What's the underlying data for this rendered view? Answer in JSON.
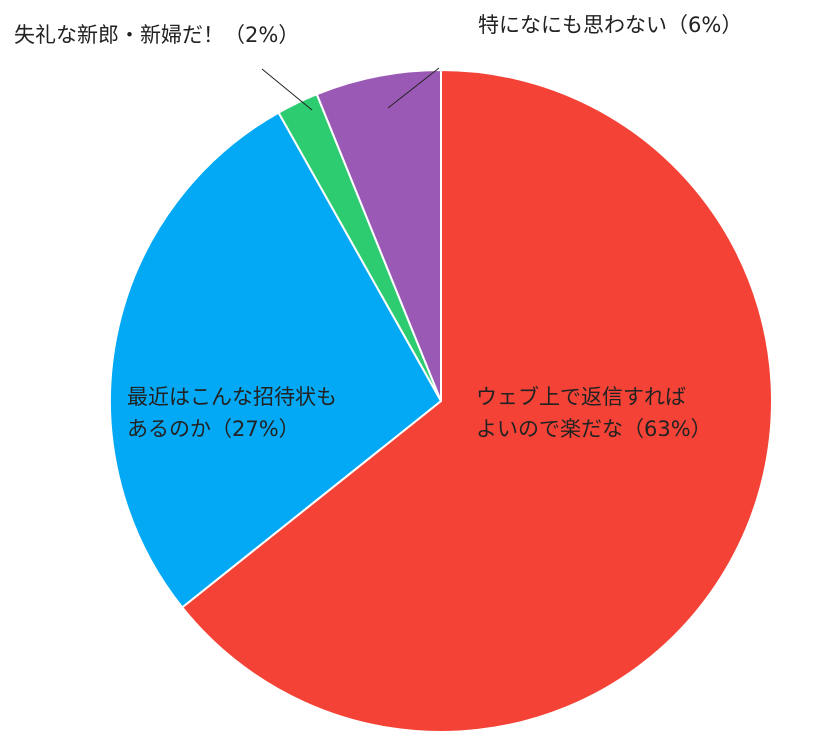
{
  "chart_data": {
    "type": "pie",
    "title": "",
    "start_angle_deg": 0,
    "direction": "clockwise",
    "label_color": "#222222",
    "slices": [
      {
        "label": "ウェブ上で返信すれば\nよいので楽だな（63%）",
        "value": 63,
        "color": "#f44336"
      },
      {
        "label": "最近はこんな招待状も\nあるのか（27%）",
        "value": 27,
        "color": "#03a9f4"
      },
      {
        "label": "失礼な新郎・新婦だ！（2%）",
        "value": 2,
        "color": "#2ecc71"
      },
      {
        "label": "特になにも思わない（6%）",
        "value": 6,
        "color": "#9b59b6"
      }
    ]
  }
}
